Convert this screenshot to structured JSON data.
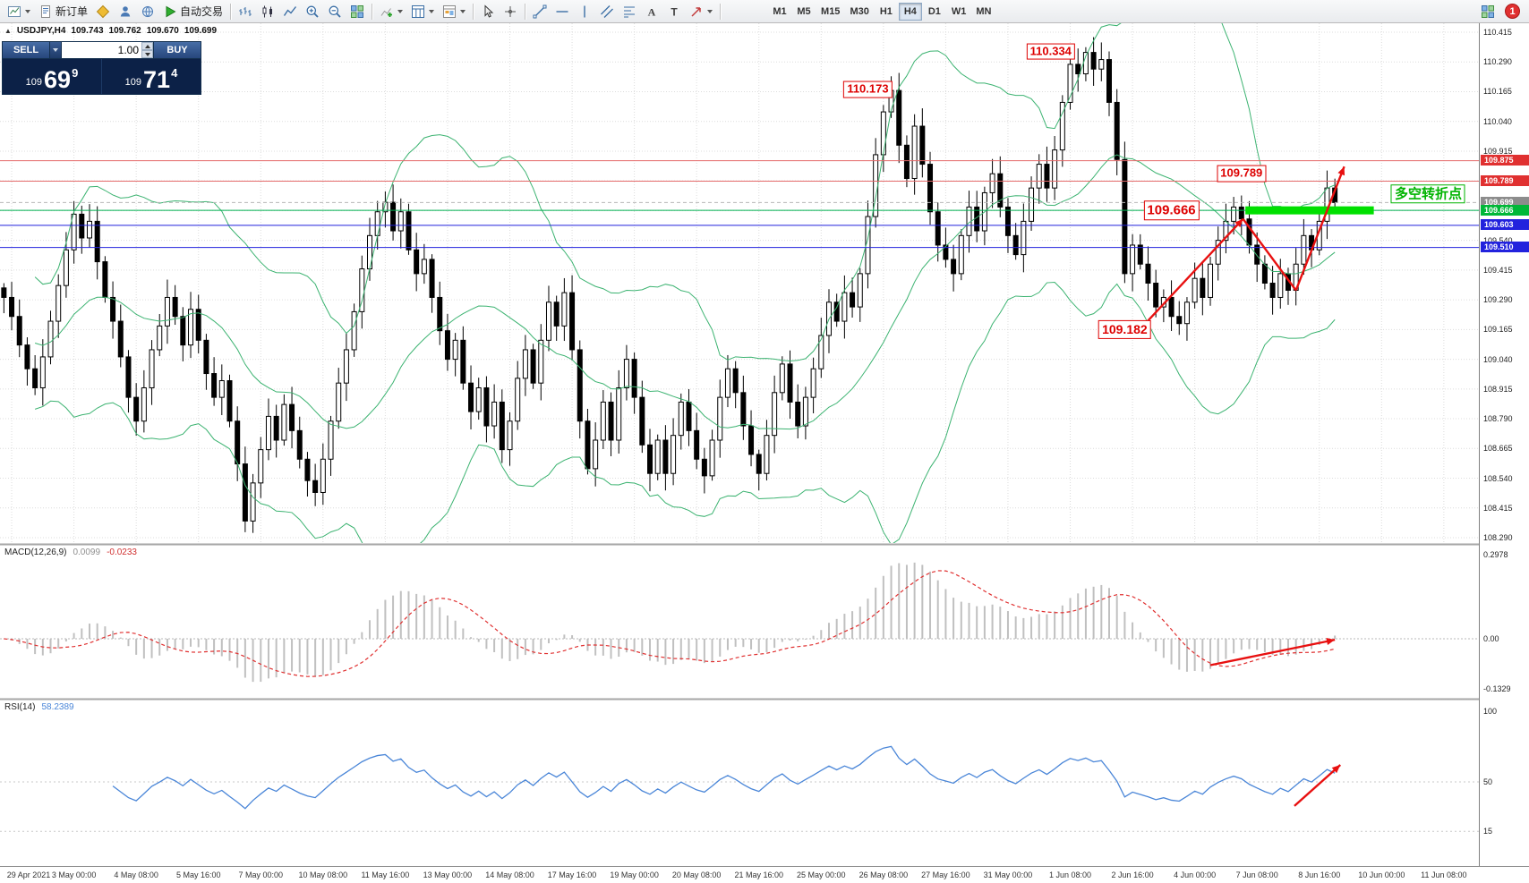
{
  "colors": {
    "bull": "#ffffff",
    "bear": "#000000",
    "candle_outline": "#000000",
    "bollinger": "#3cb371",
    "grid": "#dcdcdc",
    "macd_hist": "#c0c0c0",
    "macd_signal": "#e03030",
    "rsi_line": "#4a86d8",
    "arrow": "#e81010"
  },
  "toolbar": {
    "items": [
      {
        "icon": "chart",
        "name": "chart-window-icon-button",
        "caret": true
      },
      {
        "icon": "neworder",
        "name": "new-order-button",
        "label": "新订单"
      },
      {
        "icon": "diamond",
        "name": "favorites-icon-button"
      },
      {
        "icon": "user",
        "name": "community-icon-button"
      },
      {
        "icon": "globe",
        "name": "market-watch-icon-button"
      },
      {
        "icon": "play",
        "name": "autotrading-button",
        "label": "自动交易"
      },
      {
        "sep": true
      },
      {
        "icon": "bars",
        "name": "bar-chart-type-button"
      },
      {
        "icon": "candles",
        "name": "candlestick-chart-type-button"
      },
      {
        "icon": "linechart",
        "name": "line-chart-type-button"
      },
      {
        "icon": "zoomin",
        "name": "zoom-in-button"
      },
      {
        "icon": "zoomout",
        "name": "zoom-out-button"
      },
      {
        "icon": "tile",
        "name": "tile-windows-button"
      },
      {
        "sep": true
      },
      {
        "icon": "indicators",
        "name": "indicators-button",
        "caret": true
      },
      {
        "icon": "periods",
        "name": "periods-button",
        "caret": true
      },
      {
        "icon": "template",
        "name": "templates-button",
        "caret": true
      },
      {
        "sep": true
      },
      {
        "icon": "cursor",
        "name": "cursor-tool-button"
      },
      {
        "icon": "crosshair",
        "name": "crosshair-tool-button"
      },
      {
        "sep": true
      },
      {
        "icon": "trendline",
        "name": "trendline-tool-button"
      },
      {
        "icon": "hline",
        "name": "horizontal-line-tool-button"
      },
      {
        "icon": "vline",
        "name": "vertical-line-tool-button"
      },
      {
        "icon": "channel",
        "name": "equidistant-channel-tool-button"
      },
      {
        "icon": "fibo",
        "name": "fibonacci-tool-button"
      },
      {
        "icon": "textA",
        "name": "text-tool-button"
      },
      {
        "icon": "textT",
        "name": "text-label-tool-button"
      },
      {
        "icon": "arrowtool",
        "name": "arrows-tool-button",
        "caret": true
      },
      {
        "sep": true
      }
    ],
    "timeframes": [
      {
        "label": "M1"
      },
      {
        "label": "M5"
      },
      {
        "label": "M15"
      },
      {
        "label": "M30"
      },
      {
        "label": "H1"
      },
      {
        "label": "H4",
        "active": true
      },
      {
        "label": "D1"
      },
      {
        "label": "W1"
      },
      {
        "label": "MN"
      }
    ],
    "right_items": [
      {
        "icon": "tile",
        "name": "mql5-services-icon-button"
      },
      {
        "badge": "1",
        "name": "notifications-badge"
      }
    ]
  },
  "quote": {
    "toggle": "▲",
    "symbol": "USDJPY,H4",
    "open": "109.743",
    "high": "109.762",
    "low": "109.670",
    "close": "109.699"
  },
  "trade_panel": {
    "sell_label": "SELL",
    "buy_label": "BUY",
    "volume": "1.00",
    "sell_prefix": "109",
    "sell_big": "69",
    "sell_sup": "9",
    "buy_prefix": "109",
    "buy_big": "71",
    "buy_sup": "4"
  },
  "main_chart": {
    "hlines": [
      {
        "price": 109.875,
        "hex": "#e46a6a",
        "dash": ""
      },
      {
        "price": 109.789,
        "hex": "#e46a6a",
        "dash": ""
      },
      {
        "price": 109.699,
        "hex": "#b8b8b8",
        "dash": "4,3"
      },
      {
        "price": 109.666,
        "hex": "#00b050",
        "dash": ""
      },
      {
        "price": 109.603,
        "hex": "#2222dd",
        "dash": ""
      },
      {
        "price": 109.51,
        "hex": "#2222dd",
        "dash": ""
      }
    ],
    "highlight": {
      "price": 109.666,
      "bar_start": 159.5,
      "bar_end": 176,
      "hex": "#00e000"
    },
    "annotations": [
      {
        "text": "110.334",
        "bar": 134.5,
        "price": 110.334,
        "size": 13
      },
      {
        "text": "110.173",
        "bar": 111,
        "price": 110.173,
        "size": 13
      },
      {
        "text": "109.789",
        "bar": 159,
        "price": 109.82,
        "size": 13
      },
      {
        "text": "109.666",
        "bar": 150,
        "price": 109.666,
        "size": 15
      },
      {
        "text": "109.182",
        "bar": 144,
        "price": 109.165,
        "size": 14
      },
      {
        "text": "多空转折点",
        "bar": 183,
        "price": 109.735,
        "size": 15,
        "green": true
      }
    ],
    "arrows": [
      {
        "b1": 145.5,
        "p1": 109.15,
        "b2": 159.2,
        "p2": 109.63,
        "head": true
      },
      {
        "b1": 159.2,
        "p1": 109.63,
        "b2": 166,
        "p2": 109.33,
        "head": false
      },
      {
        "b1": 166,
        "p1": 109.33,
        "b2": 172.2,
        "p2": 109.85,
        "head": true
      }
    ]
  },
  "price_axis": {
    "ticks": [
      "110.415",
      "110.290",
      "110.165",
      "110.040",
      "109.915",
      "109.790",
      "109.665",
      "109.540",
      "109.415",
      "109.290",
      "109.165",
      "109.040",
      "108.915",
      "108.790",
      "108.665",
      "108.540",
      "108.415",
      "108.290"
    ],
    "tags": [
      {
        "text": "109.875",
        "hex": "#e03030"
      },
      {
        "text": "109.789",
        "hex": "#e03030"
      },
      {
        "text": "109.699",
        "hex": "#8c8c8c"
      },
      {
        "text": "109.666",
        "hex": "#00b838"
      },
      {
        "text": "109.603",
        "hex": "#2222dd"
      },
      {
        "text": "109.510",
        "hex": "#2222dd"
      }
    ]
  },
  "macd": {
    "label": "MACD(12,26,9)",
    "v1": "0.0099",
    "v2": "-0.0233",
    "axis_top": "0.2978",
    "axis_zero": "0.00",
    "axis_bottom": "-0.1329",
    "fast": 12,
    "slow": 26,
    "signal_period": 9,
    "arrow": {
      "b1": 155,
      "v1": -0.105,
      "b2": 171,
      "v2": -0.004
    }
  },
  "rsi": {
    "label": "RSI(14)",
    "value": "58.2389",
    "axis": [
      "100",
      "50",
      "15"
    ],
    "levels": [
      50,
      15
    ],
    "period": 14,
    "arrow": {
      "b1": 165.8,
      "v1": 33,
      "b2": 171.7,
      "v2": 62
    }
  },
  "time_axis": {
    "labels": [
      "29 Apr 2021",
      "3 May 00:00",
      "4 May 08:00",
      "5 May 16:00",
      "7 May 00:00",
      "10 May 08:00",
      "11 May 16:00",
      "13 May 00:00",
      "14 May 08:00",
      "17 May 16:00",
      "19 May 00:00",
      "20 May 08:00",
      "21 May 16:00",
      "25 May 00:00",
      "26 May 08:00",
      "27 May 16:00",
      "31 May 00:00",
      "1 Jun 08:00",
      "2 Jun 16:00",
      "4 Jun 00:00",
      "7 Jun 08:00",
      "8 Jun 16:00",
      "10 Jun 00:00",
      "11 Jun 08:00"
    ]
  },
  "chart_data": {
    "type": "candlestick",
    "symbol": "USDJPY",
    "timeframe": "H4",
    "title": "USDJPY,H4",
    "current_ohlc": {
      "open": 109.743,
      "high": 109.762,
      "low": 109.67,
      "close": 109.699
    },
    "price_range": [
      108.29,
      110.415
    ],
    "bollinger": {
      "period": 20,
      "deviation": 2
    },
    "key_levels": [
      109.875,
      109.789,
      109.699,
      109.666,
      109.603,
      109.54,
      109.51
    ],
    "annotated_prices": [
      110.334,
      110.173,
      109.789,
      109.666,
      109.182
    ],
    "macd_axis_range": [
      -0.1329,
      0.2978
    ],
    "rsi_value": 58.2389,
    "closes": [
      109.3,
      109.22,
      109.1,
      109.0,
      108.92,
      109.05,
      109.2,
      109.35,
      109.5,
      109.65,
      109.55,
      109.62,
      109.45,
      109.3,
      109.2,
      109.05,
      108.88,
      108.78,
      108.92,
      109.08,
      109.18,
      109.3,
      109.22,
      109.1,
      109.25,
      109.12,
      108.98,
      108.88,
      108.95,
      108.78,
      108.6,
      108.36,
      108.52,
      108.66,
      108.8,
      108.7,
      108.85,
      108.74,
      108.62,
      108.53,
      108.48,
      108.62,
      108.78,
      108.94,
      109.08,
      109.24,
      109.42,
      109.56,
      109.66,
      109.7,
      109.58,
      109.66,
      109.5,
      109.4,
      109.46,
      109.3,
      109.16,
      109.04,
      109.12,
      108.94,
      108.82,
      108.92,
      108.76,
      108.86,
      108.66,
      108.78,
      108.96,
      109.08,
      108.94,
      109.12,
      109.28,
      109.18,
      109.32,
      109.08,
      108.78,
      108.58,
      108.7,
      108.86,
      108.7,
      108.92,
      109.04,
      108.88,
      108.68,
      108.56,
      108.7,
      108.56,
      108.72,
      108.86,
      108.74,
      108.62,
      108.55,
      108.7,
      108.88,
      109.0,
      108.9,
      108.76,
      108.64,
      108.56,
      108.72,
      108.9,
      109.02,
      108.86,
      108.76,
      108.88,
      109.0,
      109.14,
      109.28,
      109.2,
      109.32,
      109.26,
      109.4,
      109.64,
      109.9,
      110.08,
      110.17,
      109.94,
      109.8,
      110.02,
      109.86,
      109.66,
      109.52,
      109.46,
      109.4,
      109.56,
      109.68,
      109.58,
      109.74,
      109.82,
      109.68,
      109.56,
      109.48,
      109.62,
      109.76,
      109.86,
      109.76,
      109.92,
      110.12,
      110.28,
      110.24,
      110.33,
      110.26,
      110.3,
      110.12,
      109.88,
      109.4,
      109.52,
      109.44,
      109.36,
      109.26,
      109.3,
      109.22,
      109.19,
      109.28,
      109.38,
      109.3,
      109.44,
      109.54,
      109.62,
      109.68,
      109.63,
      109.52,
      109.44,
      109.36,
      109.3,
      109.4,
      109.33,
      109.44,
      109.56,
      109.5,
      109.62,
      109.76,
      109.699
    ]
  }
}
